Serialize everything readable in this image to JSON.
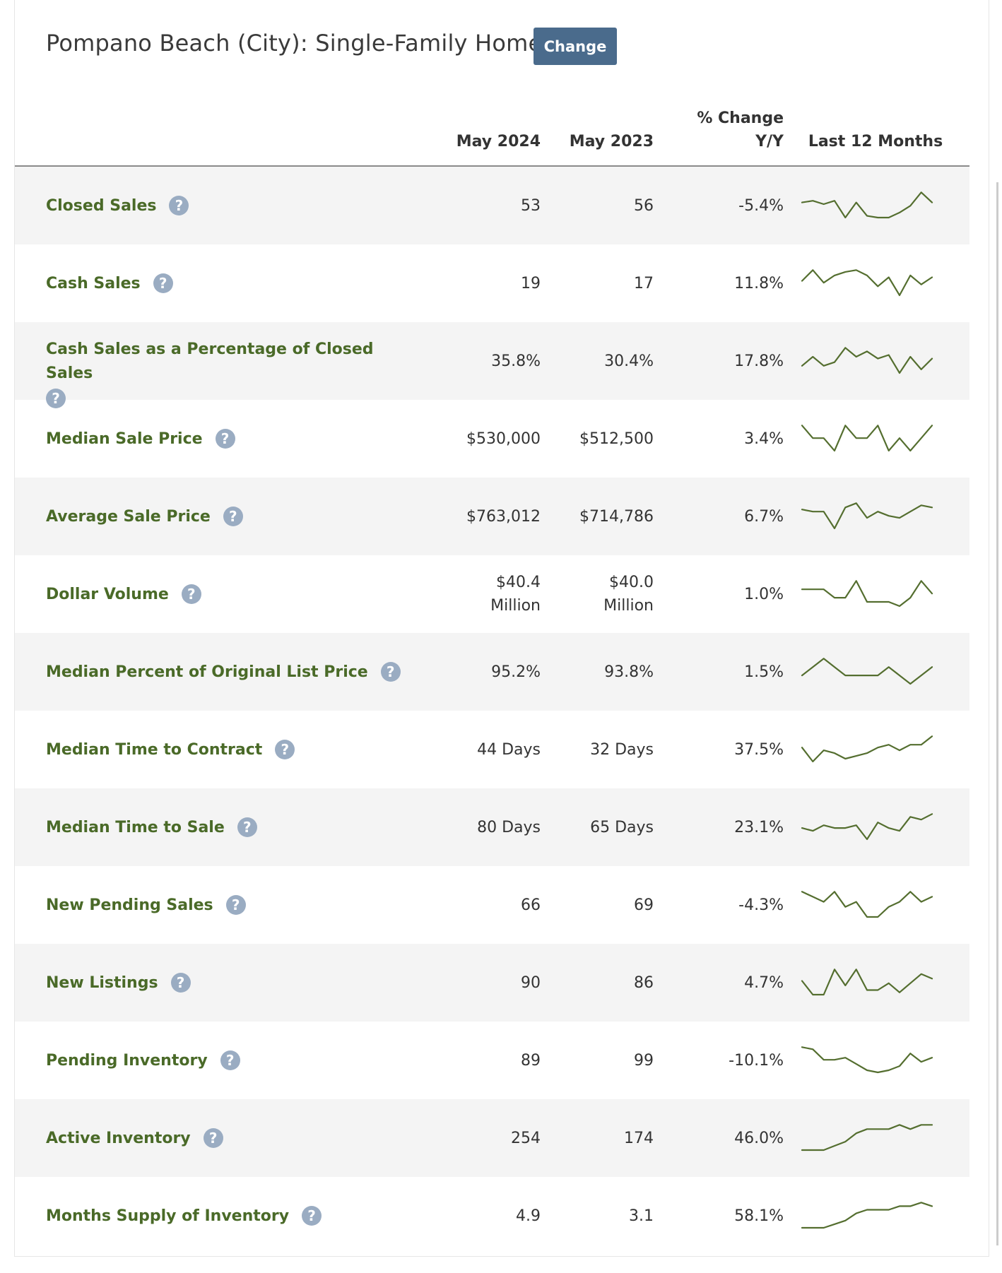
{
  "header": {
    "title": "Pompano Beach (City): Single-Family Homes",
    "change_label": "Change"
  },
  "columns": {
    "current": "May 2024",
    "previous": "May 2023",
    "pct_change_line1": "% Change",
    "pct_change_line2": "Y/Y",
    "trend": "Last 12 Months"
  },
  "colors": {
    "metric_label": "#4a6a28",
    "sparkline": "#546e2f",
    "button_bg": "#4a6b8c",
    "help_icon_bg": "#9aacc2",
    "row_shade": "#f4f4f4"
  },
  "icons": {
    "help": "question-mark-circle-icon"
  },
  "help_glyph": "?",
  "rows": [
    {
      "metric": "Closed Sales",
      "current": "53",
      "previous": "56",
      "pct_change": "-5.4%",
      "trend": [
        14,
        15,
        13,
        15,
        5,
        14,
        6,
        5,
        5,
        8,
        12,
        20,
        14
      ]
    },
    {
      "metric": "Cash Sales",
      "current": "19",
      "previous": "17",
      "pct_change": "11.8%",
      "trend": [
        14,
        20,
        13,
        17,
        19,
        20,
        17,
        11,
        16,
        6,
        17,
        12,
        16
      ]
    },
    {
      "metric": "Cash Sales as a Percentage of Closed Sales",
      "current": "35.8%",
      "previous": "30.4%",
      "pct_change": "17.8%",
      "trend": [
        12,
        17,
        12,
        14,
        22,
        17,
        20,
        16,
        18,
        8,
        17,
        10,
        16
      ]
    },
    {
      "metric": "Median Sale Price",
      "current_line1": "$530,000",
      "previous_line1": "$512,500",
      "pct_change": "3.4%",
      "trend": [
        15,
        14,
        14,
        13,
        15,
        14,
        14,
        15,
        13,
        14,
        13,
        14,
        15
      ]
    },
    {
      "metric": "Average Sale Price",
      "current": "$763,012",
      "previous": "$714,786",
      "pct_change": "6.7%",
      "trend": [
        14,
        13,
        13,
        5,
        15,
        17,
        10,
        13,
        11,
        10,
        13,
        16,
        15
      ]
    },
    {
      "metric": "Dollar Volume",
      "current_line1": "$40.4",
      "current_line2": "Million",
      "previous_line1": "$40.0",
      "previous_line2": "Million",
      "pct_change": "1.0%",
      "trend": [
        12,
        12,
        12,
        10,
        10,
        14,
        9,
        9,
        9,
        8,
        10,
        14,
        11
      ]
    },
    {
      "metric": "Median Percent of Original List Price",
      "current": "95.2%",
      "previous": "93.8%",
      "pct_change": "1.5%",
      "trend": [
        14,
        14.5,
        15,
        14.5,
        14,
        14,
        14,
        14,
        14.5,
        14,
        13.5,
        14,
        14.5
      ]
    },
    {
      "metric": "Median Time to Contract",
      "current": "44 Days",
      "previous": "32 Days",
      "pct_change": "37.5%",
      "trend": [
        10,
        5,
        9,
        8,
        6,
        7,
        8,
        10,
        11,
        9,
        11,
        11,
        14
      ]
    },
    {
      "metric": "Median Time to Sale",
      "current": "80 Days",
      "previous": "65 Days",
      "pct_change": "23.1%",
      "trend": [
        10,
        9,
        11,
        10,
        10,
        11,
        6,
        12,
        10,
        9,
        14,
        13,
        15
      ]
    },
    {
      "metric": "New Pending Sales",
      "current": "66",
      "previous": "69",
      "pct_change": "-4.3%",
      "trend": [
        15,
        14,
        13,
        15,
        12,
        13,
        10,
        10,
        12,
        13,
        15,
        13,
        14
      ]
    },
    {
      "metric": "New Listings",
      "current": "90",
      "previous": "86",
      "pct_change": "4.7%",
      "trend": [
        12,
        6,
        6,
        17,
        10,
        17,
        8,
        8,
        11,
        7,
        11,
        15,
        13
      ]
    },
    {
      "metric": "Pending Inventory",
      "current": "89",
      "previous": "99",
      "pct_change": "-10.1%",
      "trend": [
        17,
        16,
        11,
        11,
        12,
        9,
        6,
        5,
        6,
        8,
        14,
        10,
        12
      ]
    },
    {
      "metric": "Active Inventory",
      "current": "254",
      "previous": "174",
      "pct_change": "46.0%",
      "trend": [
        8,
        8,
        8,
        9,
        10,
        12,
        13,
        13,
        13,
        14,
        13,
        14,
        14
      ]
    },
    {
      "metric": "Months Supply of Inventory",
      "current": "4.9",
      "previous": "3.1",
      "pct_change": "58.1%",
      "trend": [
        6,
        6,
        6,
        7,
        8,
        10,
        11,
        11,
        11,
        12,
        12,
        13,
        12
      ]
    }
  ]
}
